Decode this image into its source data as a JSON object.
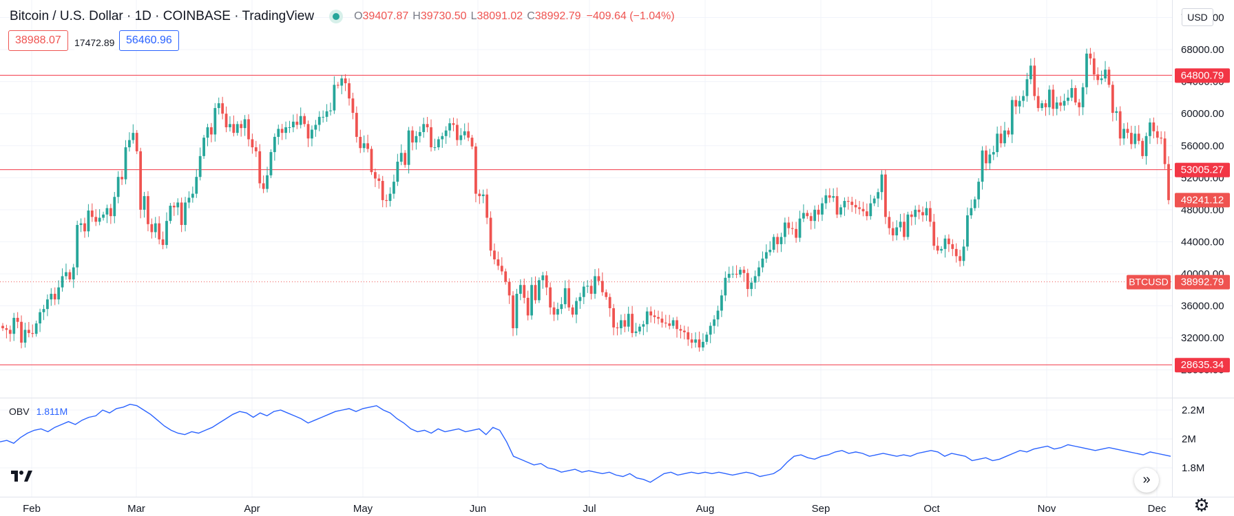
{
  "header": {
    "symbol_title": "Bitcoin / U.S. Dollar · 1D · COINBASE · TradingView",
    "ohlc": {
      "o_label": "O",
      "o": "39407.87",
      "h_label": "H",
      "h": "39730.50",
      "l_label": "L",
      "l": "38091.02",
      "c_label": "C",
      "c": "38992.79",
      "change": "−409.64 (−1.04%)"
    },
    "price_sell": "38988.07",
    "spread": "17472.89",
    "price_buy": "56460.96"
  },
  "currency_label": "USD",
  "icons": {
    "live": "live-status-dot-icon",
    "logo": "tradingview-logo-icon",
    "scroll": "scroll-to-realtime-icon",
    "settings": "gear-icon"
  },
  "colors": {
    "up": "#26a69a",
    "down": "#ef5350",
    "obv_line": "#2962ff",
    "level_line": "#f23645"
  },
  "obv_legend": {
    "name": "OBV",
    "value": "1.811M"
  },
  "chart_data": [
    {
      "type": "candlestick",
      "title": "Bitcoin / U.S. Dollar · 1D · COINBASE · TradingView",
      "x_tick_labels": [
        "Feb",
        "Mar",
        "Apr",
        "May",
        "Jun",
        "Jul",
        "Aug",
        "Sep",
        "Oct",
        "Nov",
        "Dec"
      ],
      "y_tick_labels": [
        "28000.00",
        "32000.00",
        "36000.00",
        "40000.00",
        "44000.00",
        "48000.00",
        "52000.00",
        "56000.00",
        "60000.00",
        "64000.00",
        "68000.00",
        "72000.00"
      ],
      "ylim": [
        27000,
        71000
      ],
      "ylabel": "USD",
      "grid": true,
      "horizontal_levels": [
        {
          "value": 64800.79,
          "label": "64800.79"
        },
        {
          "value": 53005.27,
          "label": "53005.27"
        },
        {
          "value": 28635.34,
          "label": "28635.34"
        }
      ],
      "price_tags": [
        {
          "value": 49241.12,
          "label": "49241.12"
        },
        {
          "value": 38992.79,
          "label": "38992.79",
          "symbol": "BTCUSD"
        }
      ],
      "series": [
        {
          "name": "BTCUSD",
          "approx_daily_close": [
            33200,
            33000,
            32500,
            34500,
            34000,
            31400,
            33000,
            32600,
            32500,
            33800,
            35200,
            35600,
            36800,
            37500,
            36800,
            38300,
            39700,
            40200,
            39300,
            40800,
            46100,
            46300,
            45300,
            47900,
            47100,
            46500,
            47000,
            47400,
            48200,
            47200,
            49600,
            52100,
            51800,
            55800,
            56700,
            57600,
            55300,
            48000,
            49700,
            46200,
            45200,
            46300,
            44300,
            43600,
            46600,
            48500,
            48300,
            48900,
            46100,
            48900,
            49500,
            50000,
            52100,
            54700,
            57000,
            58300,
            57400,
            60700,
            61300,
            60000,
            58300,
            58700,
            57600,
            58700,
            58200,
            59300,
            56800,
            55800,
            55300,
            51300,
            50600,
            52300,
            55200,
            57100,
            58100,
            57600,
            58300,
            58300,
            59000,
            58600,
            59700,
            58700,
            56900,
            58000,
            58600,
            59600,
            59600,
            60300,
            60400,
            63600,
            63500,
            64400,
            63800,
            61900,
            60100,
            57100,
            55700,
            56300,
            55600,
            52700,
            51900,
            51600,
            49200,
            49100,
            50000,
            51500,
            54000,
            55100,
            53600,
            57900,
            56400,
            57200,
            57700,
            58700,
            58300,
            55800,
            55800,
            56800,
            57200,
            57900,
            58800,
            58600,
            56700,
            57300,
            57800,
            57000,
            55900,
            50000,
            49700,
            49900,
            47000,
            42900,
            41800,
            41000,
            40300,
            39000,
            37300,
            33200,
            37500,
            38600,
            37000,
            34800,
            38600,
            36700,
            39200,
            39800,
            38300,
            35800,
            34900,
            35600,
            36200,
            38200,
            35800,
            34900,
            36600,
            37100,
            38400,
            38500,
            37500,
            39700,
            39100,
            37700,
            37100,
            35700,
            33300,
            33200,
            34200,
            33400,
            35000,
            32600,
            32800,
            33400,
            33700,
            35300,
            34800,
            34600,
            34400,
            33900,
            33800,
            33500,
            34200,
            33100,
            32900,
            32700,
            31800,
            31400,
            31800,
            30800,
            31500,
            32400,
            33500,
            34300,
            35400,
            37300,
            39500,
            40000,
            40000,
            39900,
            40500,
            40100,
            38100,
            38900,
            39700,
            40800,
            41900,
            42700,
            43000,
            44600,
            43700,
            44600,
            46400,
            45700,
            45600,
            44500,
            46900,
            47600,
            47200,
            46600,
            48000,
            47400,
            48800,
            49800,
            49500,
            49700,
            47400,
            48300,
            49100,
            49000,
            48600,
            48300,
            48100,
            47800,
            47200,
            48800,
            49400,
            50200,
            52400,
            47100,
            45700,
            44800,
            45800,
            46500,
            44600,
            47400,
            47100,
            48000,
            47700,
            47300,
            48200,
            46500,
            43500,
            42900,
            43100,
            44400,
            43700,
            43100,
            42200,
            41600,
            43400,
            47300,
            48200,
            49300,
            51500,
            55400,
            53800,
            54900,
            55200,
            57500,
            56300,
            57900,
            57400,
            61700,
            60900,
            61600,
            62200,
            64300,
            66000,
            62200,
            60700,
            61300,
            60800,
            63000,
            60600,
            61400,
            61000,
            61600,
            62000,
            63200,
            61400,
            60800,
            63300,
            67500,
            66900,
            64900,
            64200,
            64400,
            65500,
            63600,
            60100,
            60300,
            56900,
            58100,
            57600,
            56200,
            57500,
            56600,
            54700,
            57200,
            58900,
            57800,
            57000,
            56900,
            53700,
            49200
          ]
        }
      ]
    },
    {
      "type": "line",
      "title": "OBV",
      "y_tick_labels": [
        "1.8M",
        "2M",
        "2.2M"
      ],
      "ylim": [
        1.7,
        2.28
      ],
      "series": [
        {
          "name": "OBV",
          "approx_values": [
            1.98,
            1.99,
            1.97,
            2.01,
            2.04,
            2.06,
            2.07,
            2.05,
            2.08,
            2.1,
            2.12,
            2.1,
            2.13,
            2.15,
            2.16,
            2.2,
            2.18,
            2.21,
            2.22,
            2.24,
            2.23,
            2.2,
            2.17,
            2.13,
            2.09,
            2.06,
            2.04,
            2.03,
            2.05,
            2.04,
            2.06,
            2.08,
            2.11,
            2.14,
            2.17,
            2.19,
            2.18,
            2.15,
            2.18,
            2.16,
            2.19,
            2.2,
            2.18,
            2.16,
            2.14,
            2.11,
            2.13,
            2.15,
            2.17,
            2.19,
            2.2,
            2.21,
            2.19,
            2.21,
            2.22,
            2.23,
            2.2,
            2.18,
            2.14,
            2.11,
            2.07,
            2.05,
            2.06,
            2.04,
            2.07,
            2.05,
            2.06,
            2.07,
            2.05,
            2.06,
            2.07,
            2.03,
            2.08,
            2.06,
            1.98,
            1.88,
            1.86,
            1.84,
            1.82,
            1.83,
            1.8,
            1.79,
            1.77,
            1.78,
            1.79,
            1.77,
            1.78,
            1.77,
            1.76,
            1.77,
            1.75,
            1.74,
            1.76,
            1.73,
            1.72,
            1.7,
            1.73,
            1.76,
            1.77,
            1.75,
            1.76,
            1.77,
            1.76,
            1.77,
            1.76,
            1.77,
            1.76,
            1.75,
            1.76,
            1.77,
            1.76,
            1.74,
            1.75,
            1.76,
            1.79,
            1.84,
            1.88,
            1.89,
            1.87,
            1.86,
            1.88,
            1.89,
            1.91,
            1.92,
            1.9,
            1.91,
            1.9,
            1.88,
            1.89,
            1.9,
            1.89,
            1.88,
            1.89,
            1.88,
            1.9,
            1.91,
            1.92,
            1.91,
            1.88,
            1.9,
            1.89,
            1.88,
            1.85,
            1.86,
            1.87,
            1.85,
            1.86,
            1.88,
            1.9,
            1.92,
            1.91,
            1.93,
            1.94,
            1.95,
            1.93,
            1.94,
            1.96,
            1.95,
            1.94,
            1.93,
            1.92,
            1.93,
            1.94,
            1.93,
            1.92,
            1.91,
            1.9,
            1.89,
            1.91,
            1.9,
            1.89,
            1.88
          ]
        }
      ]
    }
  ]
}
